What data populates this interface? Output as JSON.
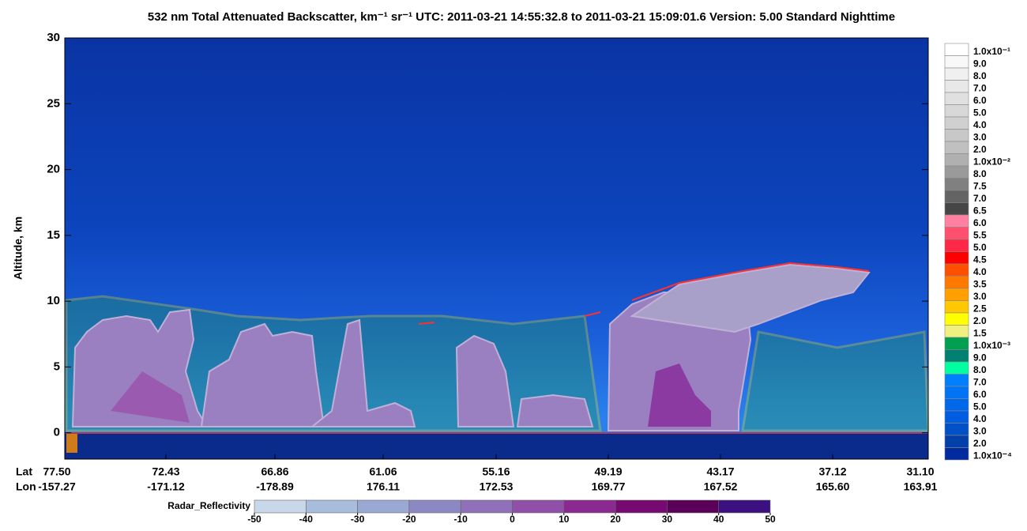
{
  "chart_data": {
    "type": "curtain",
    "title": "532 nm Total Attenuated Backscatter, km⁻¹ sr⁻¹    UTC:  2011-03-21 14:55:32.8  to  2011-03-21 15:09:01.6    Version: 5.00  Standard  Nighttime",
    "ylabel": "Altitude, km",
    "ylim": [
      -2,
      30
    ],
    "yticks": [
      0,
      5,
      10,
      15,
      20,
      25,
      30
    ],
    "lat_label": "Lat",
    "lon_label": "Lon",
    "lat_ticks": [
      "77.50",
      "72.43",
      "66.86",
      "61.06",
      "55.16",
      "49.19",
      "43.17",
      "37.12",
      "31.10"
    ],
    "lon_ticks": [
      "-157.27",
      "-171.12",
      "-178.89",
      "176.11",
      "172.53",
      "169.77",
      "167.52",
      "165.60",
      "163.91"
    ],
    "colorbar": [
      {
        "label": "1.0x10⁻¹",
        "color": "#ffffff"
      },
      {
        "label": "9.0",
        "color": "#f8f8f8"
      },
      {
        "label": "8.0",
        "color": "#f0f0f0"
      },
      {
        "label": "7.0",
        "color": "#e8e8e8"
      },
      {
        "label": "6.0",
        "color": "#e0e0e0"
      },
      {
        "label": "5.0",
        "color": "#d8d8d8"
      },
      {
        "label": "4.0",
        "color": "#d0d0d0"
      },
      {
        "label": "3.0",
        "color": "#c8c8c8"
      },
      {
        "label": "2.0",
        "color": "#c0c0c0"
      },
      {
        "label": "1.0x10⁻²",
        "color": "#b0b0b0"
      },
      {
        "label": "8.0",
        "color": "#9a9a9a"
      },
      {
        "label": "7.5",
        "color": "#808080"
      },
      {
        "label": "7.0",
        "color": "#646464"
      },
      {
        "label": "6.5",
        "color": "#464646"
      },
      {
        "label": "6.0",
        "color": "#ff80a0"
      },
      {
        "label": "5.5",
        "color": "#ff5070"
      },
      {
        "label": "5.0",
        "color": "#ff2848"
      },
      {
        "label": "4.5",
        "color": "#ff0000"
      },
      {
        "label": "4.0",
        "color": "#ff5000"
      },
      {
        "label": "3.5",
        "color": "#ff7800"
      },
      {
        "label": "3.0",
        "color": "#ffa000"
      },
      {
        "label": "2.5",
        "color": "#ffc800"
      },
      {
        "label": "2.0",
        "color": "#ffff00"
      },
      {
        "label": "1.5",
        "color": "#f0f080"
      },
      {
        "label": "1.0x10⁻³",
        "color": "#00a050"
      },
      {
        "label": "9.0",
        "color": "#008070"
      },
      {
        "label": "8.0",
        "color": "#00ffa0"
      },
      {
        "label": "7.0",
        "color": "#0080ff"
      },
      {
        "label": "6.0",
        "color": "#0074f4"
      },
      {
        "label": "5.0",
        "color": "#0068ea"
      },
      {
        "label": "4.0",
        "color": "#005ce0"
      },
      {
        "label": "3.0",
        "color": "#0050c8"
      },
      {
        "label": "2.0",
        "color": "#0040a8"
      },
      {
        "label": "1.0x10⁻⁴",
        "color": "#002aa0"
      }
    ],
    "radar_colorbar": {
      "label": "Radar_Reflectivity",
      "xlim": [
        -50,
        50
      ],
      "ticks": [
        -50,
        -40,
        -30,
        -20,
        -10,
        0,
        10,
        20,
        30,
        40,
        50
      ],
      "colors": [
        "#c8d8ea",
        "#a8bcdc",
        "#9aa8d4",
        "#8c88c4",
        "#9070b8",
        "#9050a8",
        "#8a2a90",
        "#760a70",
        "#5a0058",
        "#3c1080"
      ]
    }
  }
}
